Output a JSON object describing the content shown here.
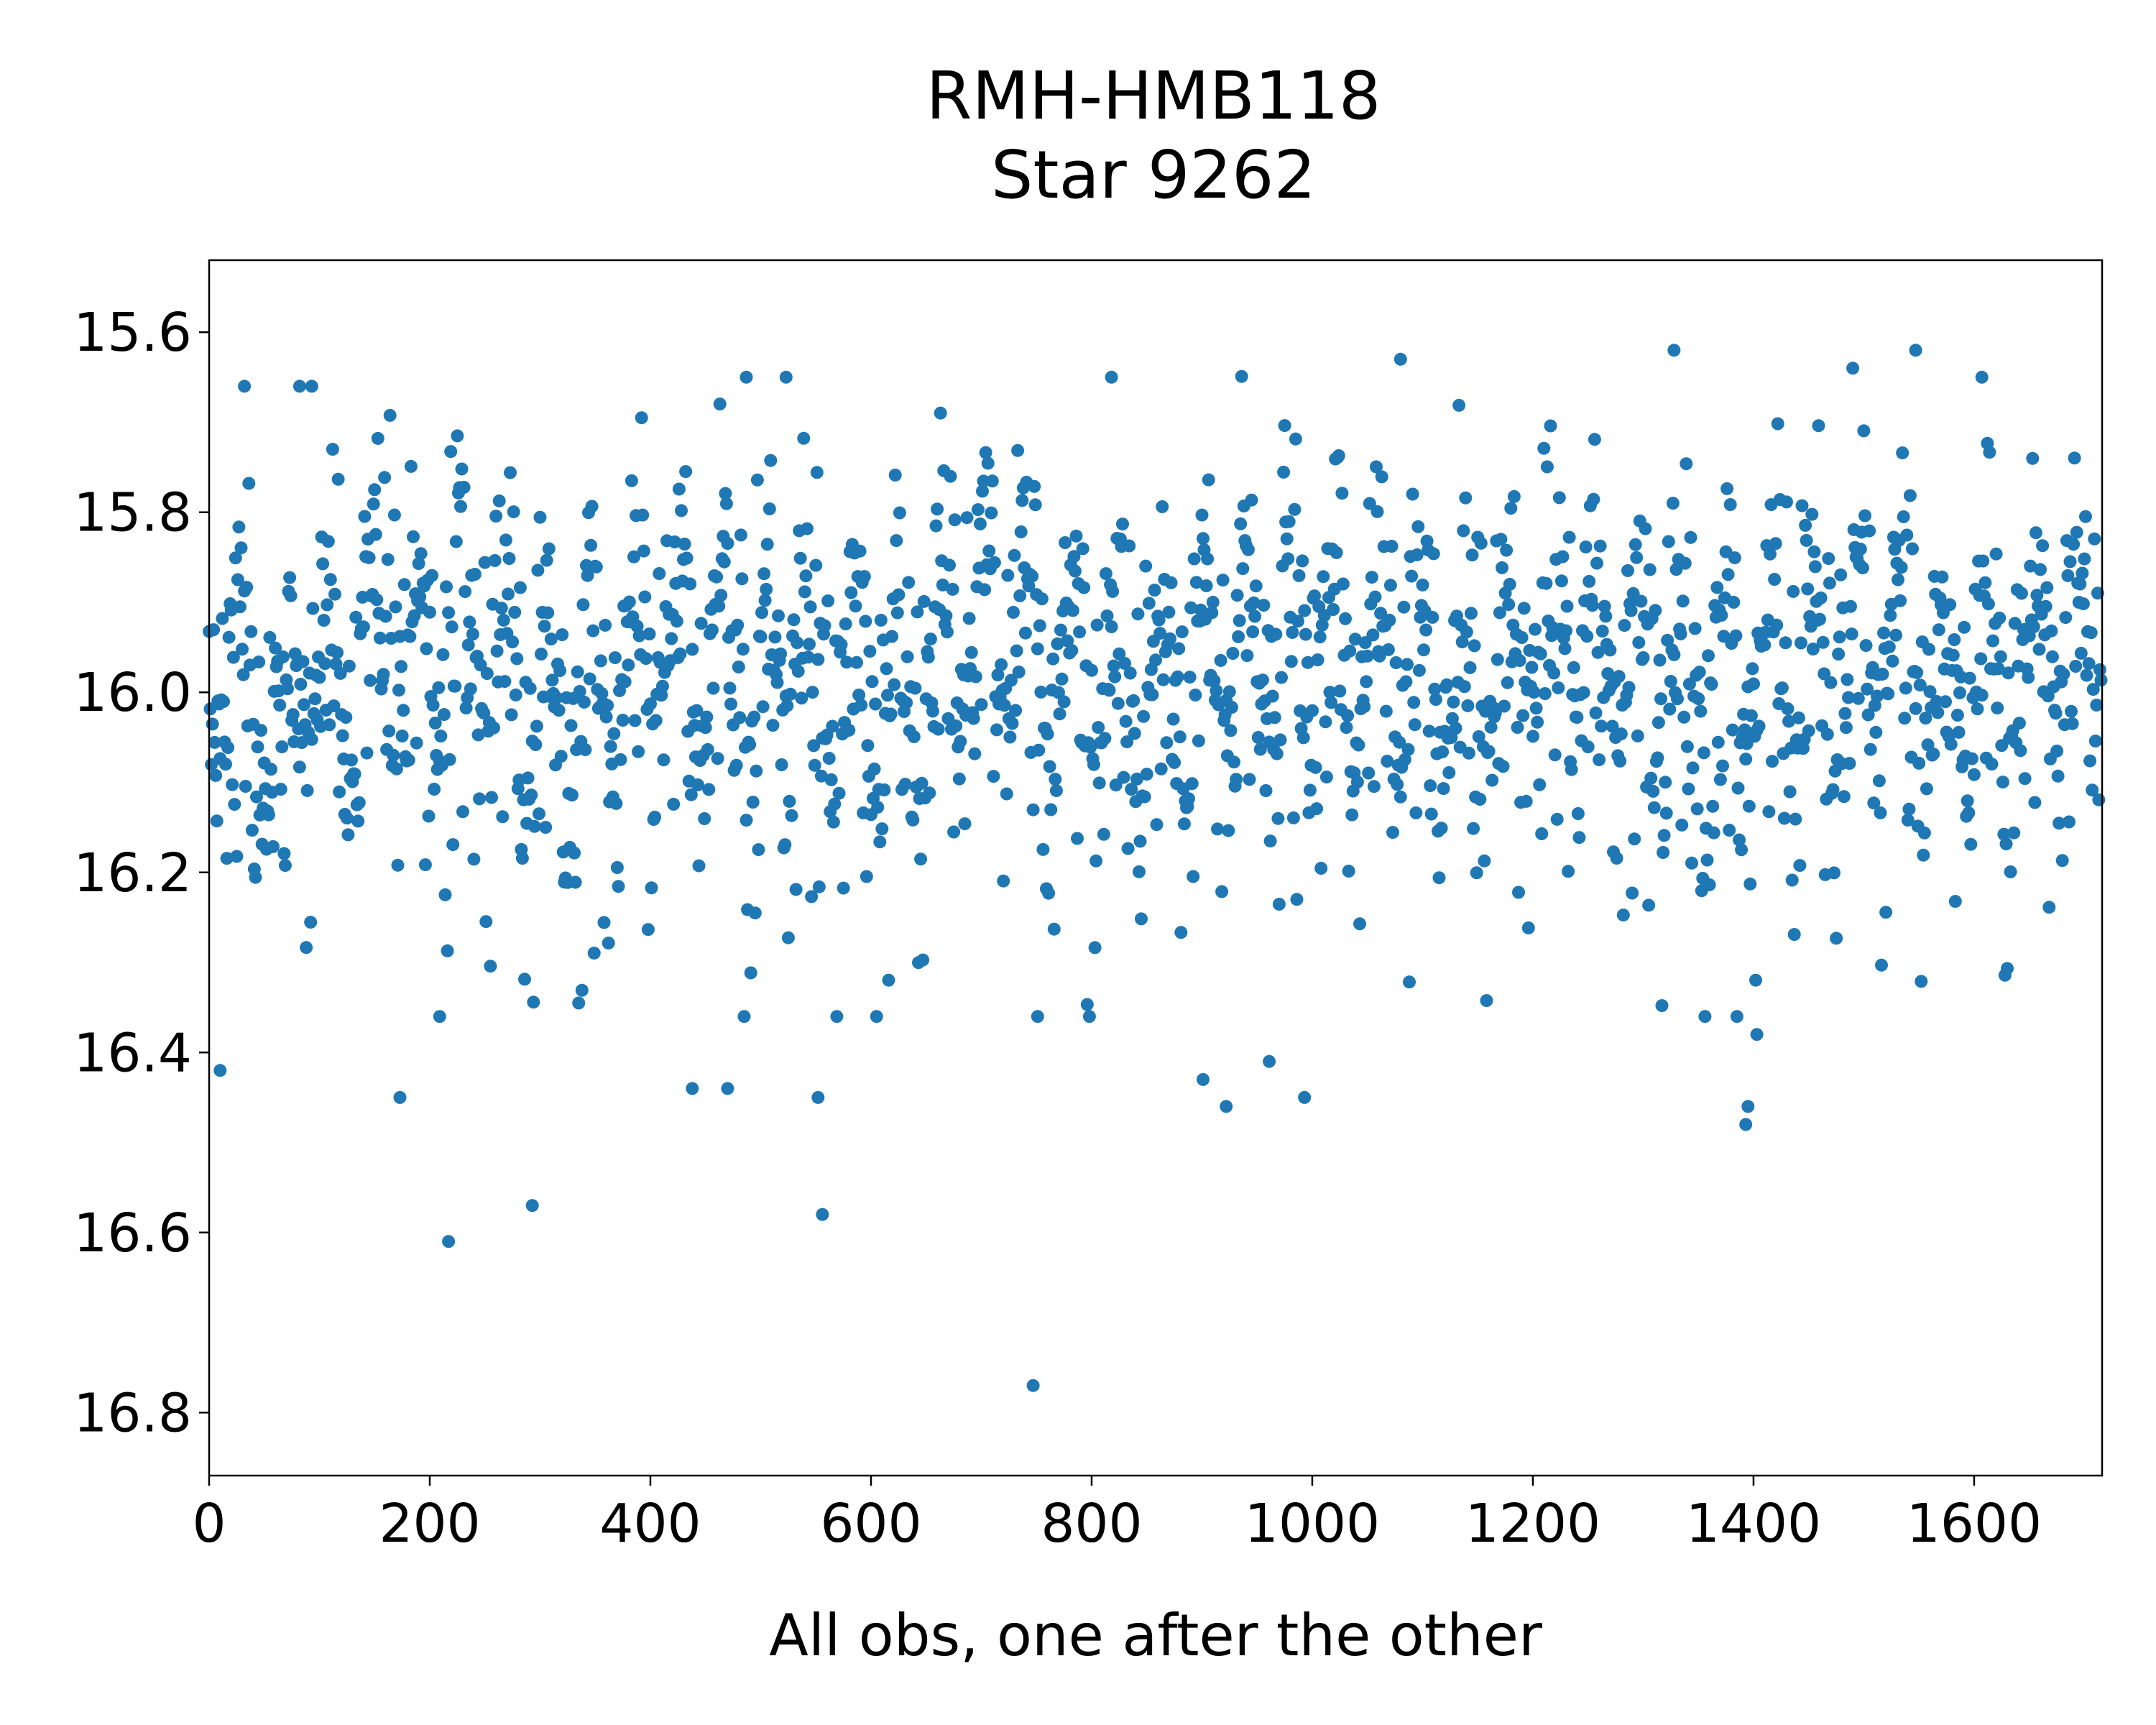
{
  "chart_data": {
    "type": "scatter",
    "title": "RMH-HMB118",
    "subtitle": "Star 9262",
    "xlabel": "All obs, one after the other",
    "ylabel": "",
    "xlim": [
      0,
      1716
    ],
    "ylim": [
      16.87,
      15.52
    ],
    "y_inverted": true,
    "xticks": [
      0,
      200,
      400,
      600,
      800,
      1000,
      1200,
      1400,
      1600
    ],
    "yticks": [
      15.6,
      15.8,
      16.0,
      16.2,
      16.4,
      16.6,
      16.8
    ],
    "ytick_labels": [
      "15.6",
      "15.8",
      "16.0",
      "16.2",
      "16.4",
      "16.6",
      "16.8"
    ],
    "grid": false,
    "marker_color": "#1f77b4",
    "n_points": 1716,
    "baseline_magnitude": 15.97,
    "outliers": [
      {
        "x": 10,
        "y": 16.42
      },
      {
        "x": 173,
        "y": 16.45
      },
      {
        "x": 209,
        "y": 16.36
      },
      {
        "x": 217,
        "y": 16.61
      },
      {
        "x": 293,
        "y": 16.57
      },
      {
        "x": 438,
        "y": 16.44
      },
      {
        "x": 470,
        "y": 16.44
      },
      {
        "x": 552,
        "y": 16.45
      },
      {
        "x": 556,
        "y": 16.58
      },
      {
        "x": 747,
        "y": 16.77
      },
      {
        "x": 751,
        "y": 16.36
      },
      {
        "x": 901,
        "y": 16.43
      },
      {
        "x": 922,
        "y": 16.46
      },
      {
        "x": 961,
        "y": 16.41
      },
      {
        "x": 993,
        "y": 16.45
      },
      {
        "x": 1393,
        "y": 16.48
      },
      {
        "x": 1395,
        "y": 16.46
      },
      {
        "x": 1403,
        "y": 16.38
      }
    ],
    "bright_points": [
      {
        "x": 32,
        "y": 15.66
      },
      {
        "x": 82,
        "y": 15.66
      },
      {
        "x": 93,
        "y": 15.66
      },
      {
        "x": 487,
        "y": 15.65
      },
      {
        "x": 523,
        "y": 15.65
      },
      {
        "x": 818,
        "y": 15.65
      },
      {
        "x": 1080,
        "y": 15.63
      },
      {
        "x": 1328,
        "y": 15.62
      },
      {
        "x": 1547,
        "y": 15.62
      },
      {
        "x": 1607,
        "y": 15.65
      }
    ]
  }
}
